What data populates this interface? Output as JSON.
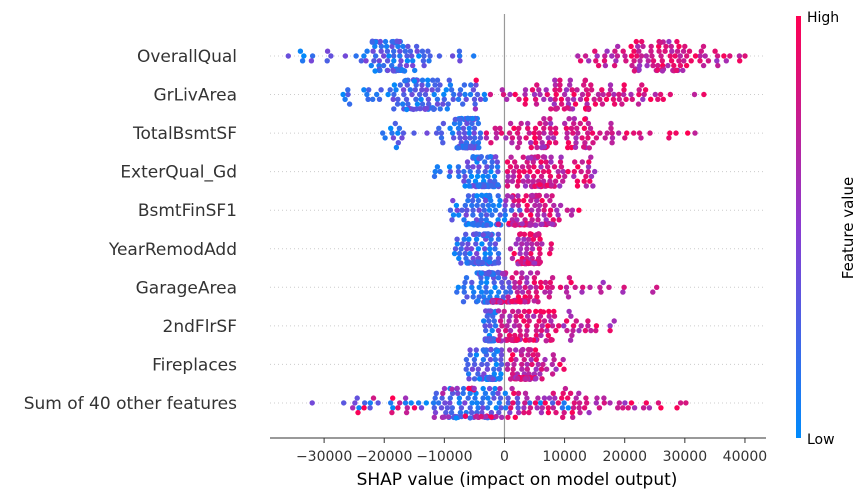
{
  "chart_data": {
    "type": "scatter",
    "subtype": "shap-beeswarm",
    "xlabel": "SHAP value (impact on model output)",
    "xlim": [
      -39000,
      43500
    ],
    "xticks": [
      -30000,
      -20000,
      -10000,
      0,
      10000,
      20000,
      30000,
      40000
    ],
    "xtick_labels": [
      "−30000",
      "−20000",
      "−10000",
      "0",
      "10000",
      "20000",
      "30000",
      "40000"
    ],
    "features": [
      {
        "name": "OverallQual",
        "low_range": [
          -36000,
          -5000
        ],
        "low_core": [
          -22000,
          -15000
        ],
        "high_range": [
          12000,
          40000
        ],
        "high_core": [
          18000,
          34000
        ]
      },
      {
        "name": "GrLivArea",
        "low_range": [
          -27000,
          -3000
        ],
        "low_core": [
          -19000,
          -8000
        ],
        "high_range": [
          -8000,
          34000
        ],
        "high_core": [
          0,
          20000
        ]
      },
      {
        "name": "TotalBsmtSF",
        "low_range": [
          -20500,
          -4000
        ],
        "low_core": [
          -7500,
          -4500
        ],
        "high_range": [
          -3000,
          33000
        ],
        "high_core": [
          0,
          16000
        ]
      },
      {
        "name": "ExterQual_Gd",
        "low_range": [
          -12000,
          -1000
        ],
        "low_core": [
          -5000,
          -2000
        ],
        "high_range": [
          500,
          15000
        ],
        "high_core": [
          2500,
          10000
        ]
      },
      {
        "name": "BsmtFinSF1",
        "low_range": [
          -10000,
          3000
        ],
        "low_core": [
          -6000,
          -1500
        ],
        "high_range": [
          -1000,
          12500
        ],
        "high_core": [
          1000,
          6500
        ]
      },
      {
        "name": "YearRemodAdd",
        "low_range": [
          -8500,
          -1000
        ],
        "low_core": [
          -5500,
          -2000
        ],
        "high_range": [
          1000,
          8000
        ],
        "high_core": [
          2000,
          6000
        ]
      },
      {
        "name": "GarageArea",
        "low_range": [
          -8000,
          1000
        ],
        "low_core": [
          -4000,
          -500
        ],
        "high_range": [
          -2000,
          25500
        ],
        "high_core": [
          -1000,
          6000
        ]
      },
      {
        "name": "2ndFlrSF",
        "low_range": [
          -3500,
          -1500
        ],
        "low_core": [
          -2800,
          -1800
        ],
        "high_range": [
          -1000,
          19000
        ],
        "high_core": [
          -500,
          8000
        ]
      },
      {
        "name": "Fireplaces",
        "low_range": [
          -7000,
          -500
        ],
        "low_core": [
          -3500,
          -1000
        ],
        "high_range": [
          500,
          10000
        ],
        "high_core": [
          1500,
          5000
        ]
      },
      {
        "name": "Sum of 40 other features",
        "low_range": [
          -32000,
          12000
        ],
        "low_core": [
          -10000,
          0
        ],
        "high_range": [
          -28000,
          32000
        ],
        "high_core": [
          -5000,
          18000
        ]
      }
    ],
    "colorbar": {
      "label": "Feature value",
      "high_label": "High",
      "low_label": "Low",
      "low_color": "#008bfb",
      "high_color": "#ff0052"
    },
    "zero_line": 0
  }
}
